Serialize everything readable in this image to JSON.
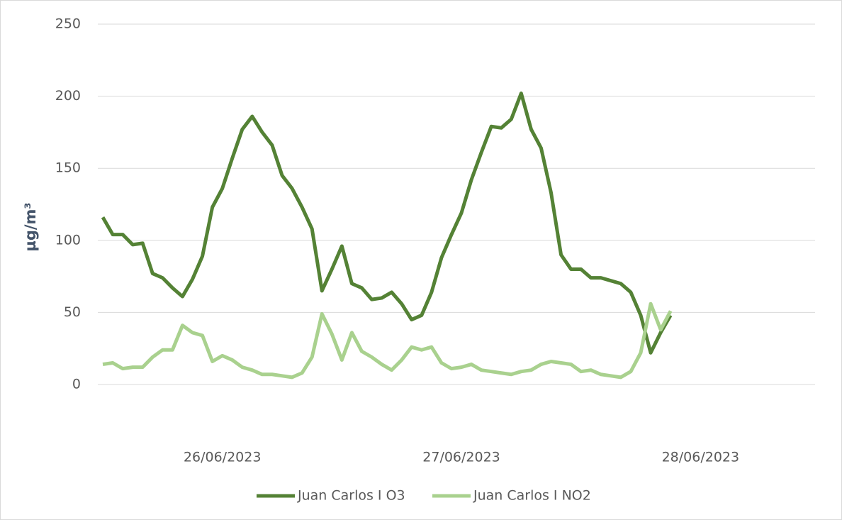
{
  "chart_data": {
    "type": "line",
    "y_label": "µg/m³",
    "x": [
      0,
      1,
      2,
      3,
      4,
      5,
      6,
      7,
      8,
      9,
      10,
      11,
      12,
      13,
      14,
      15,
      16,
      17,
      18,
      19,
      20,
      21,
      22,
      23,
      24,
      25,
      26,
      27,
      28,
      29,
      30,
      31,
      32,
      33,
      34,
      35,
      36,
      37,
      38,
      39,
      40,
      41,
      42,
      43,
      44,
      45,
      46,
      47,
      48,
      49,
      50,
      51,
      52,
      53,
      54,
      55,
      56,
      57
    ],
    "xlim": [
      -0.5,
      71.5
    ],
    "xticks": [
      {
        "value": 12,
        "label": "26/06/2023"
      },
      {
        "value": 36,
        "label": "27/06/2023"
      },
      {
        "value": 60,
        "label": "28/06/2023"
      }
    ],
    "ylim": [
      0,
      250
    ],
    "yticks": [
      0,
      50,
      100,
      150,
      200,
      250
    ],
    "grid": true,
    "legend": "bottom",
    "series": [
      {
        "name": "Juan Carlos I O3",
        "color": "#548235",
        "values": [
          116,
          104,
          104,
          97,
          98,
          77,
          74,
          67,
          61,
          73,
          89,
          123,
          136,
          157,
          177,
          186,
          175,
          166,
          145,
          136,
          123,
          108,
          65,
          80,
          96,
          70,
          67,
          59,
          60,
          64,
          56,
          45,
          48,
          64,
          88,
          104,
          119,
          142,
          161,
          179,
          178,
          184,
          202,
          177,
          164,
          133,
          90,
          80,
          80,
          74,
          74,
          72,
          70,
          64,
          48,
          22,
          36,
          48
        ]
      },
      {
        "name": "Juan Carlos I NO2",
        "color": "#a9d18e",
        "values": [
          14,
          15,
          11,
          12,
          12,
          19,
          24,
          24,
          41,
          36,
          34,
          16,
          20,
          17,
          12,
          10,
          7,
          7,
          6,
          5,
          8,
          19,
          49,
          35,
          17,
          36,
          23,
          19,
          14,
          10,
          17,
          26,
          24,
          26,
          15,
          11,
          12,
          14,
          10,
          9,
          8,
          7,
          9,
          10,
          14,
          16,
          15,
          14,
          9,
          10,
          7,
          6,
          5,
          9,
          22,
          56,
          38,
          51
        ]
      }
    ]
  }
}
